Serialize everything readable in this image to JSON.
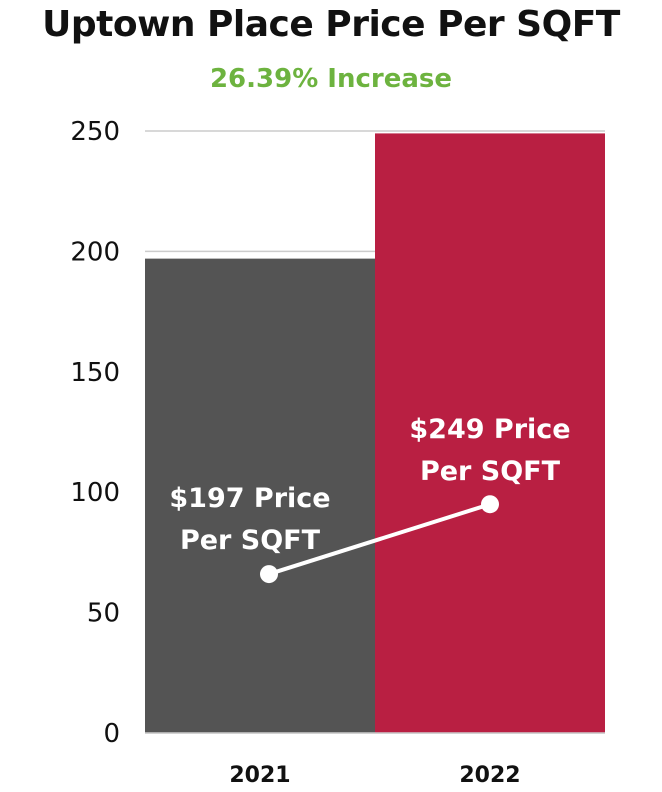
{
  "chart_data": {
    "type": "bar",
    "title": "Uptown Place Price Per SQFT",
    "subtitle": "26.39% Increase",
    "categories": [
      "2021",
      "2022"
    ],
    "values": [
      197,
      249
    ],
    "ylim": [
      0,
      250
    ],
    "yticks": [
      0,
      50,
      100,
      150,
      200,
      250
    ],
    "grid": true,
    "legend": "none",
    "bar_colors": [
      "#545454",
      "#B91F42"
    ],
    "overlay_line": {
      "values": [
        66,
        95
      ],
      "color": "#ffffff"
    },
    "data_labels": [
      [
        "$197 Price",
        "Per SQFT"
      ],
      [
        "$249 Price",
        "Per SQFT"
      ]
    ]
  },
  "colors": {
    "subtitle": "#6DB33F",
    "grid": "#cccccc"
  }
}
